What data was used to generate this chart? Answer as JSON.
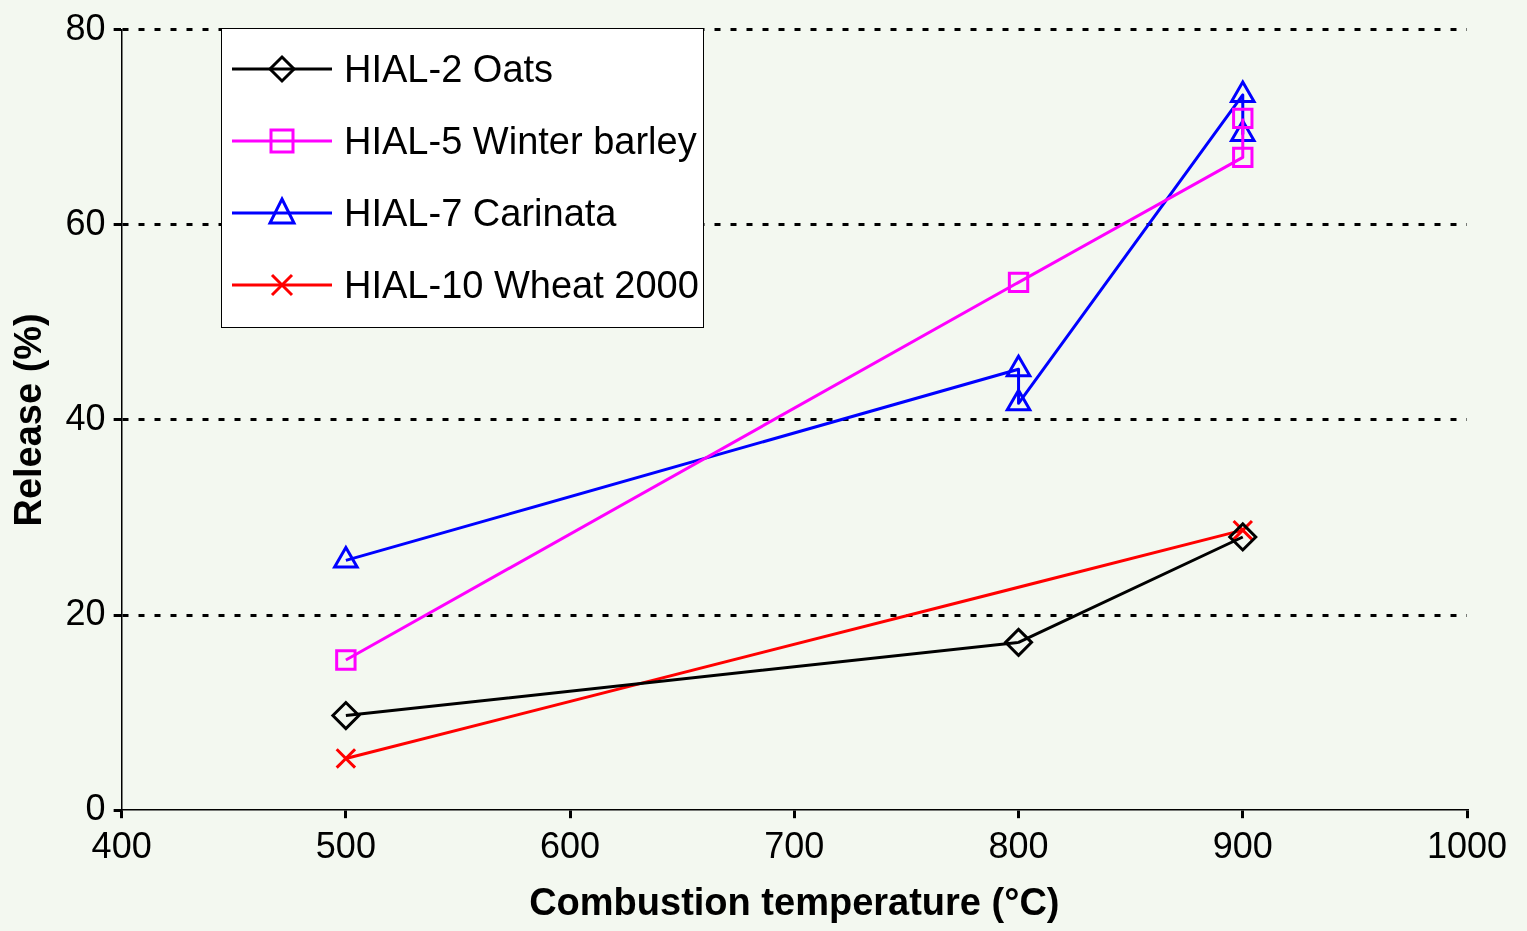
{
  "chart_data": {
    "type": "line",
    "xlabel": "Combustion temperature (°C)",
    "ylabel": "Release (%)",
    "xlim": [
      400,
      1000
    ],
    "xticks": [
      400,
      500,
      600,
      700,
      800,
      900,
      1000
    ],
    "ylim": [
      0,
      80
    ],
    "yticks": [
      0,
      20,
      40,
      60,
      80
    ],
    "grid": "y",
    "legend": "top left",
    "line_style": "solid",
    "series": [
      {
        "name": "HIAL-2 Oats",
        "color": "#000000",
        "marker": "diamond",
        "x": [
          500,
          800,
          900
        ],
        "values": [
          9.7,
          17.2,
          28.0
        ]
      },
      {
        "name": "HIAL-5 Winter barley",
        "color": "#ff00ff",
        "marker": "square",
        "x": [
          500,
          800,
          900,
          900
        ],
        "values": [
          15.4,
          54.1,
          66.9,
          70.9
        ]
      },
      {
        "name": "HIAL-7 Carinata",
        "color": "#0000ff",
        "marker": "triangle",
        "x": [
          500,
          800,
          800,
          900,
          900
        ],
        "values": [
          25.6,
          45.2,
          41.7,
          73.3,
          69.3
        ]
      },
      {
        "name": "HIAL-10 Wheat 2000",
        "color": "#ff0000",
        "marker": "cross",
        "x": [
          500,
          900
        ],
        "values": [
          5.3,
          28.7
        ]
      }
    ]
  }
}
